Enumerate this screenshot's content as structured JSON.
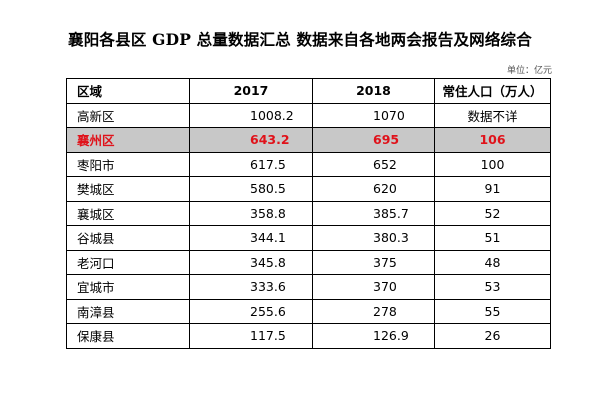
{
  "title": "襄阳各县区 GDP 总量数据汇总  数据来自各地两会报告及网络综合",
  "unit": "单位：亿元",
  "highlight_color": "#e0121a",
  "highlight_bg": "#c8c8c8",
  "table": {
    "headers": [
      "区域",
      "2017",
      "2018",
      "常住人口（万人）"
    ],
    "rows": [
      {
        "name": "高新区",
        "gdp2017": "1008.2",
        "gdp2018": "1070",
        "pop": "数据不详"
      },
      {
        "name": "襄州区",
        "gdp2017": "643.2",
        "gdp2018": "695",
        "pop": "106",
        "highlight": true
      },
      {
        "name": "枣阳市",
        "gdp2017": "617.5",
        "gdp2018": "652",
        "pop": "100"
      },
      {
        "name": "樊城区",
        "gdp2017": "580.5",
        "gdp2018": "620",
        "pop": "91"
      },
      {
        "name": "襄城区",
        "gdp2017": "358.8",
        "gdp2018": "385.7",
        "pop": "52"
      },
      {
        "name": "谷城县",
        "gdp2017": "344.1",
        "gdp2018": "380.3",
        "pop": "51"
      },
      {
        "name": "老河口",
        "gdp2017": "345.8",
        "gdp2018": "375",
        "pop": "48"
      },
      {
        "name": "宜城市",
        "gdp2017": "333.6",
        "gdp2018": "370",
        "pop": "53"
      },
      {
        "name": "南漳县",
        "gdp2017": "255.6",
        "gdp2018": "278",
        "pop": "55"
      },
      {
        "name": "保康县",
        "gdp2017": "117.5",
        "gdp2018": "126.9",
        "pop": "26"
      }
    ]
  }
}
